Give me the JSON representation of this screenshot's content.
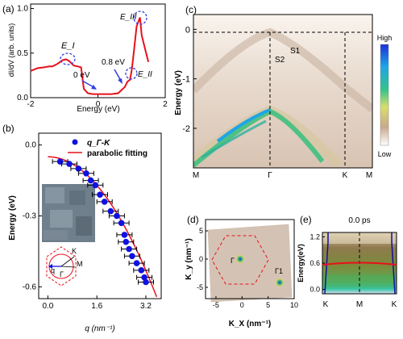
{
  "panels": {
    "a": {
      "label": "(a)"
    },
    "b": {
      "label": "(b)"
    },
    "c": {
      "label": "(c)"
    },
    "d": {
      "label": "(d)"
    },
    "e": {
      "label": "(e)"
    }
  },
  "chart_data": [
    {
      "panel": "a",
      "type": "line",
      "xlabel": "Energy (eV)",
      "ylabel": "dI/dV (arb. units)",
      "xlim": [
        -2,
        2
      ],
      "ylim": [
        0,
        1.05
      ],
      "xticks": [
        "-2",
        "0",
        "2"
      ],
      "yticks": [
        "0.0",
        "0.5",
        "1.0"
      ],
      "annotations": [
        "E_I",
        "E_II",
        "E_III",
        "0 eV",
        "0.8 eV"
      ],
      "series": [
        {
          "x": [
            -2.0,
            -1.8,
            -1.6,
            -1.45,
            -1.35,
            -1.2,
            -1.05,
            -0.95,
            -0.85,
            -0.72,
            -0.6,
            -0.5,
            -0.42,
            -0.3,
            -0.15,
            0.0,
            0.2,
            0.4,
            0.6,
            0.8,
            0.88,
            0.95,
            1.0,
            1.05,
            1.15,
            1.25,
            1.3,
            1.4,
            1.5
          ],
          "y": [
            0.3,
            0.33,
            0.34,
            0.35,
            0.35,
            0.38,
            0.42,
            0.43,
            0.41,
            0.36,
            0.35,
            0.34,
            0.1,
            0.05,
            0.04,
            0.04,
            0.04,
            0.04,
            0.05,
            0.12,
            0.18,
            0.2,
            0.3,
            0.45,
            0.8,
            0.9,
            0.7,
            0.55,
            0.4
          ]
        }
      ]
    },
    {
      "panel": "b",
      "type": "scatter",
      "xlabel": "q (nm⁻¹)",
      "ylabel": "Energy (eV)",
      "xlim": [
        -0.3,
        3.7
      ],
      "ylim": [
        -0.65,
        0.05
      ],
      "xticks": [
        "0.0",
        "1.6",
        "3.2"
      ],
      "xtick_values": [
        0.0,
        1.6,
        3.2
      ],
      "yticks": [
        "0.0",
        "-0.3",
        "-0.6"
      ],
      "ytick_values": [
        0.0,
        -0.3,
        -0.6
      ],
      "legend": [
        "q_Γ-K",
        "parabolic fitting"
      ],
      "inset_labels": {
        "k": "K",
        "m": "M",
        "gamma": "Γ",
        "q": "q"
      },
      "series": [
        {
          "name": "q_Γ-K",
          "x": [
            0.4,
            0.7,
            1.0,
            1.25,
            1.4,
            1.55,
            1.7,
            1.85,
            2.05,
            2.25,
            2.4,
            2.5,
            2.55,
            2.65,
            2.75,
            2.9,
            3.05,
            3.15,
            3.2
          ],
          "y": [
            -0.07,
            -0.08,
            -0.1,
            -0.12,
            -0.15,
            -0.17,
            -0.21,
            -0.24,
            -0.28,
            -0.3,
            -0.33,
            -0.38,
            -0.41,
            -0.44,
            -0.47,
            -0.5,
            -0.53,
            -0.56,
            -0.58
          ],
          "xerr": 0.25
        },
        {
          "name": "parabolic fitting",
          "x0": 0.0,
          "e0": -0.05,
          "curvature": -0.047
        }
      ]
    },
    {
      "panel": "c",
      "type": "heatmap",
      "ylabel": "Energy (eV)",
      "ylim": [
        -2.8,
        0.3
      ],
      "yticks": [
        "0",
        "-1",
        "-2"
      ],
      "ytick_values": [
        0,
        -1,
        -2
      ],
      "xticks": [
        "M",
        "Γ",
        "K",
        "M"
      ],
      "band_labels": [
        "S1",
        "S2"
      ],
      "colorbar": [
        "High",
        "Low"
      ]
    },
    {
      "panel": "d",
      "type": "heatmap",
      "xlabel": "K_X (nm⁻¹)",
      "ylabel": "K_y (nm⁻¹)",
      "xlim": [
        -7,
        10
      ],
      "ylim": [
        -7,
        7
      ],
      "xticks": [
        "-5",
        "0",
        "5",
        "10"
      ],
      "xtick_values": [
        -5,
        0,
        5,
        10
      ],
      "yticks": [
        "5",
        "0",
        "-5"
      ],
      "ytick_values": [
        5,
        0,
        -5
      ],
      "points": {
        "gamma": "Γ",
        "gamma1": "Γ1"
      }
    },
    {
      "panel": "e",
      "type": "heatmap",
      "title": "0.0 ps",
      "ylabel": "Energy(eV)",
      "ylim": [
        -0.1,
        1.3
      ],
      "yticks": [
        "1.2",
        "0.6",
        "0.0"
      ],
      "ytick_values": [
        1.2,
        0.6,
        0.0
      ],
      "xticks": [
        "K",
        "M",
        "K"
      ],
      "red_line_energy": 0.6
    }
  ],
  "colors": {
    "curve": "#e8101a",
    "dots": "#1010e0",
    "highlight_circle": "#2f3fe0"
  }
}
